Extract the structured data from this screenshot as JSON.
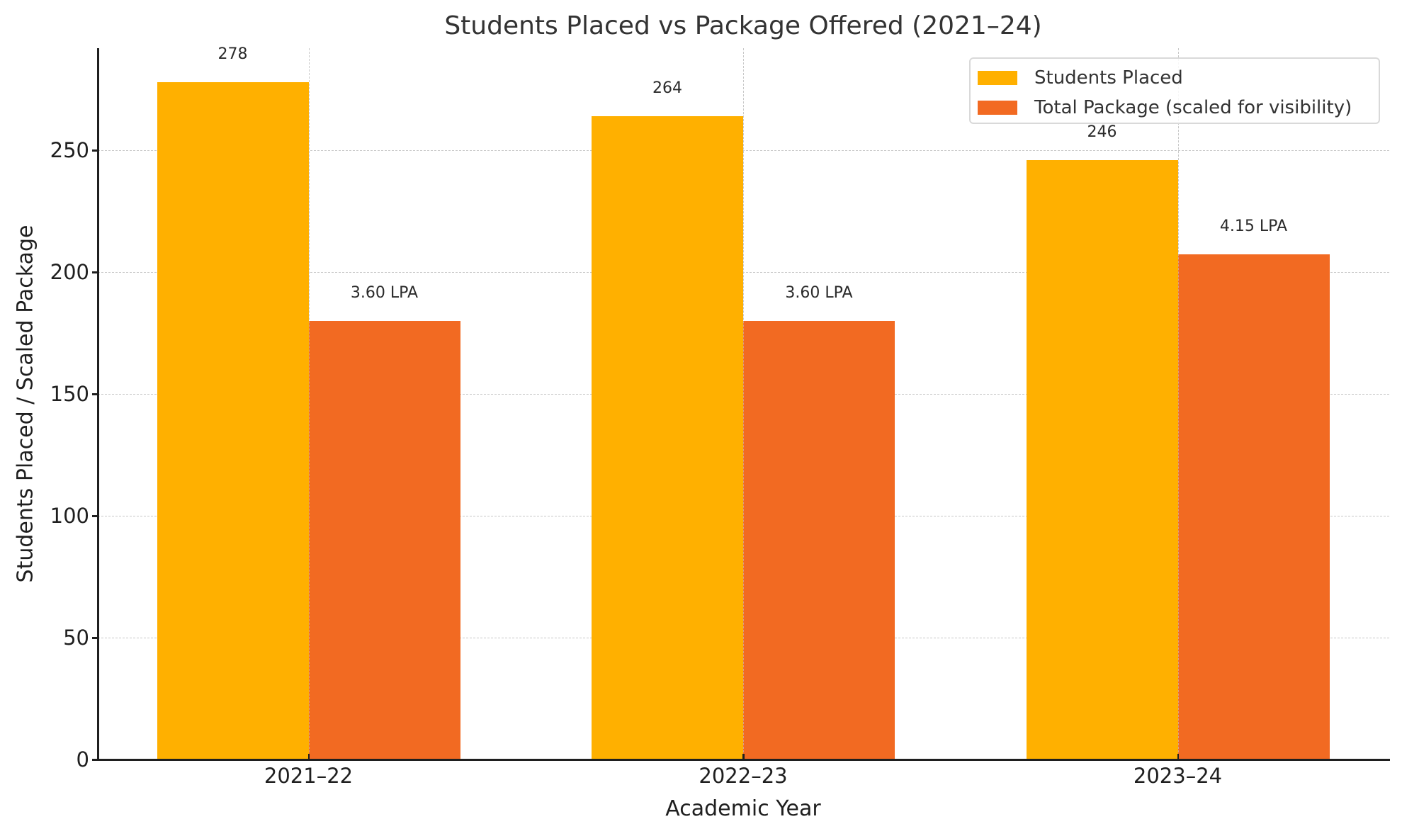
{
  "chart_data": {
    "type": "bar",
    "title": "Students Placed vs Package Offered (2021–24)",
    "xlabel": "Academic Year",
    "ylabel": "Students Placed / Scaled Package",
    "categories": [
      "2021–22",
      "2022–23",
      "2023–24"
    ],
    "series": [
      {
        "name": "Students Placed",
        "color": "#FFB000",
        "values": [
          278,
          264,
          246
        ],
        "labels": [
          "278",
          "264",
          "246"
        ]
      },
      {
        "name": "Total Package (scaled for visibility)",
        "color": "#F26A22",
        "values": [
          180,
          180,
          207.5
        ],
        "labels": [
          "3.60 LPA",
          "3.60 LPA",
          "4.15 LPA"
        ],
        "raw_values_lpa": [
          3.6,
          3.6,
          4.15
        ],
        "scale_factor": 50
      }
    ],
    "ylim": [
      0,
      292
    ],
    "yticks": [
      0,
      50,
      100,
      150,
      200,
      250
    ],
    "ytick_labels": [
      "0",
      "50",
      "100",
      "150",
      "200",
      "250"
    ],
    "grid": true,
    "legend_position": "upper right"
  }
}
